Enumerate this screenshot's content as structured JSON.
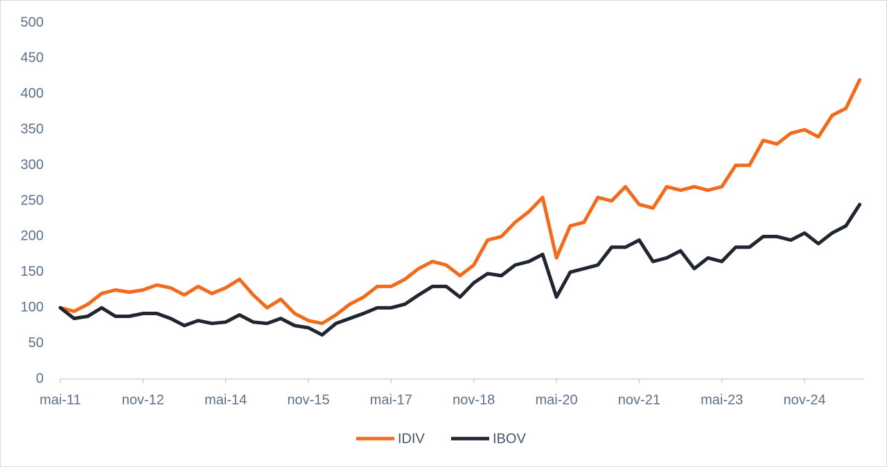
{
  "chart_data": {
    "type": "line",
    "categories": [
      "mai-11",
      null,
      null,
      null,
      null,
      null,
      "nov-12",
      null,
      null,
      null,
      null,
      null,
      "mai-14",
      null,
      null,
      null,
      null,
      null,
      "nov-15",
      null,
      null,
      null,
      null,
      null,
      "mai-17",
      null,
      null,
      null,
      null,
      null,
      "nov-18",
      null,
      null,
      null,
      null,
      null,
      "mai-20",
      null,
      null,
      null,
      null,
      null,
      "nov-21",
      null,
      null,
      null,
      null,
      null,
      "mai-23",
      null,
      null,
      null,
      null,
      null,
      "nov-24",
      null,
      null,
      null,
      null
    ],
    "series": [
      {
        "name": "IDIV",
        "color": "#f26b1d",
        "values": [
          100,
          95,
          105,
          120,
          125,
          122,
          125,
          132,
          128,
          118,
          130,
          120,
          128,
          140,
          118,
          100,
          112,
          92,
          82,
          78,
          90,
          105,
          115,
          130,
          130,
          140,
          155,
          165,
          160,
          145,
          160,
          195,
          200,
          220,
          235,
          255,
          170,
          215,
          220,
          255,
          250,
          270,
          245,
          240,
          270,
          265,
          270,
          265,
          270,
          300,
          300,
          335,
          330,
          345,
          350,
          340,
          370,
          380,
          420
        ]
      },
      {
        "name": "IBOV",
        "color": "#1f2630",
        "values": [
          100,
          85,
          88,
          100,
          88,
          88,
          92,
          92,
          85,
          75,
          82,
          78,
          80,
          90,
          80,
          78,
          85,
          75,
          72,
          62,
          78,
          85,
          92,
          100,
          100,
          105,
          118,
          130,
          130,
          115,
          135,
          148,
          145,
          160,
          165,
          175,
          115,
          150,
          155,
          160,
          185,
          185,
          195,
          165,
          170,
          180,
          155,
          170,
          165,
          185,
          185,
          200,
          200,
          195,
          205,
          190,
          205,
          215,
          245
        ]
      }
    ],
    "ylim": [
      0,
      500
    ],
    "yticks": [
      0,
      50,
      100,
      150,
      200,
      250,
      300,
      350,
      400,
      450,
      500
    ],
    "grid": false,
    "legend": "bottom"
  }
}
